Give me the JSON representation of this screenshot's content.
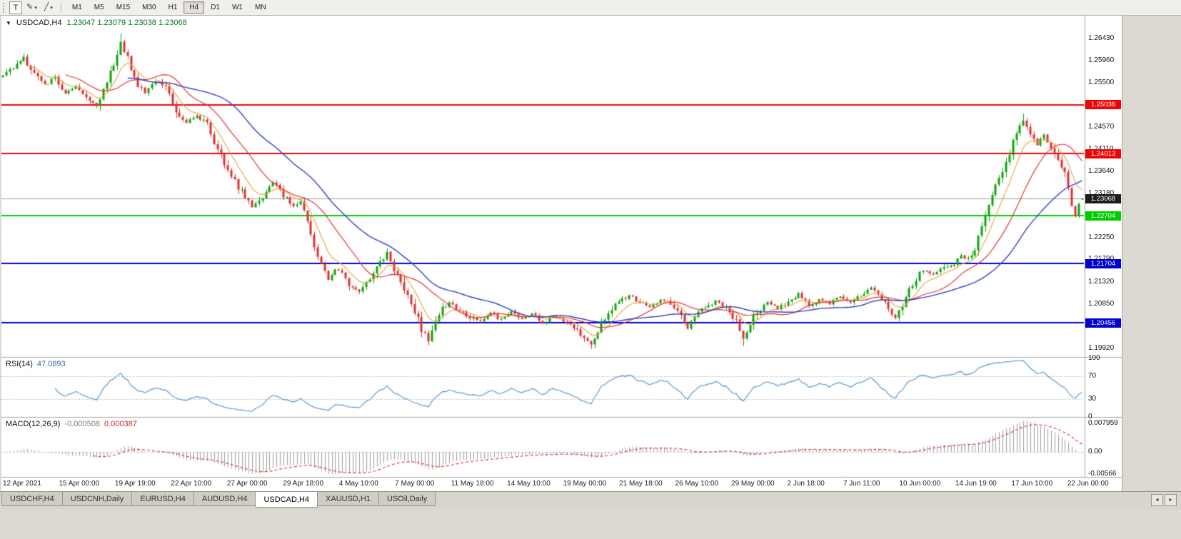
{
  "toolbar": {
    "t_button_label": "T",
    "dropdown_glyph": "▾",
    "tools": [
      {
        "name": "pencil-tool",
        "glyph": "✎"
      },
      {
        "name": "trendline-tool",
        "glyph": "╱"
      }
    ],
    "timeframes": [
      {
        "label": "M1",
        "active": false
      },
      {
        "label": "M5",
        "active": false
      },
      {
        "label": "M15",
        "active": false
      },
      {
        "label": "M30",
        "active": false
      },
      {
        "label": "H1",
        "active": false
      },
      {
        "label": "H4",
        "active": true
      },
      {
        "label": "D1",
        "active": false
      },
      {
        "label": "W1",
        "active": false
      },
      {
        "label": "MN",
        "active": false
      }
    ]
  },
  "chart": {
    "header": {
      "collapse_glyph": "▼",
      "title": "USDCAD,H4",
      "values": "1.23047 1.23079 1.23038 1.23068"
    }
  },
  "chart_data": {
    "type": "candlestick",
    "symbol": "USDCAD",
    "timeframe": "H4",
    "candle_count": 313,
    "ohlc": {
      "open": 1.23047,
      "high": 1.23079,
      "low": 1.23038,
      "close": 1.23068
    },
    "colors": {
      "bull": "#0ba50b",
      "bear": "#e03030"
    },
    "price_axis": {
      "max": 1.2691,
      "min": 1.19741,
      "ticks": [
        "1.26430",
        "1.25960",
        "1.25500",
        "1.25030",
        "1.24570",
        "1.24110",
        "1.23640",
        "1.23180",
        "1.22710",
        "1.22250",
        "1.21790",
        "1.21320",
        "1.20850",
        "1.20390",
        "1.19920"
      ]
    },
    "hlines": [
      {
        "price": 1.25036,
        "label": "1.25036",
        "color": "#f00505"
      },
      {
        "price": 1.24013,
        "label": "1.24013",
        "color": "#f00505"
      },
      {
        "price": 1.22704,
        "label": "1.22704",
        "color": "#00cc00"
      },
      {
        "price": 1.21704,
        "label": "1.21704",
        "color": "#0000cc"
      },
      {
        "price": 1.20456,
        "label": "1.20456",
        "color": "#0000cc"
      }
    ],
    "current_price": {
      "value": 1.23068,
      "label": "1.23068",
      "line_color": "#9a9a9a",
      "tag_color": "#1c1c1c"
    },
    "moving_averages": [
      {
        "type": "ema",
        "period": 8,
        "color": "#e8a33d",
        "width": 1.1
      },
      {
        "type": "sma",
        "period": 18,
        "color": "#e53434",
        "width": 1.2
      },
      {
        "type": "sma",
        "period": 36,
        "color": "#3342c8",
        "width": 1.4
      }
    ],
    "price_path": [
      [
        0,
        1.2562
      ],
      [
        3,
        1.2585
      ],
      [
        6,
        1.2602
      ],
      [
        9,
        1.257
      ],
      [
        12,
        1.2545
      ],
      [
        15,
        1.2562
      ],
      [
        18,
        1.2528
      ],
      [
        21,
        1.2545
      ],
      [
        24,
        1.252
      ],
      [
        27,
        1.25
      ],
      [
        30,
        1.2548
      ],
      [
        32,
        1.2592
      ],
      [
        34,
        1.2638
      ],
      [
        36,
        1.26
      ],
      [
        38,
        1.2558
      ],
      [
        41,
        1.2528
      ],
      [
        44,
        1.2556
      ],
      [
        47,
        1.2544
      ],
      [
        50,
        1.2492
      ],
      [
        53,
        1.2468
      ],
      [
        56,
        1.248
      ],
      [
        59,
        1.2462
      ],
      [
        61,
        1.2428
      ],
      [
        63,
        1.2398
      ],
      [
        65,
        1.2368
      ],
      [
        67,
        1.2342
      ],
      [
        69,
        1.232
      ],
      [
        72,
        1.2288
      ],
      [
        75,
        1.2308
      ],
      [
        78,
        1.2342
      ],
      [
        81,
        1.2312
      ],
      [
        84,
        1.229
      ],
      [
        86,
        1.2304
      ],
      [
        88,
        1.2262
      ],
      [
        90,
        1.2205
      ],
      [
        92,
        1.2165
      ],
      [
        94,
        1.2136
      ],
      [
        96,
        1.2158
      ],
      [
        98,
        1.215
      ],
      [
        100,
        1.2128
      ],
      [
        103,
        1.2114
      ],
      [
        106,
        1.214
      ],
      [
        108,
        1.2162
      ],
      [
        110,
        1.218
      ],
      [
        111,
        1.2194
      ],
      [
        113,
        1.216
      ],
      [
        115,
        1.2132
      ],
      [
        117,
        1.2102
      ],
      [
        119,
        1.2072
      ],
      [
        121,
        1.2032
      ],
      [
        123,
        1.201
      ],
      [
        125,
        1.2048
      ],
      [
        127,
        1.2076
      ],
      [
        129,
        1.209
      ],
      [
        132,
        1.207
      ],
      [
        135,
        1.2058
      ],
      [
        138,
        1.2048
      ],
      [
        141,
        1.2066
      ],
      [
        144,
        1.2052
      ],
      [
        147,
        1.207
      ],
      [
        150,
        1.2052
      ],
      [
        153,
        1.2063
      ],
      [
        156,
        1.2045
      ],
      [
        159,
        1.206
      ],
      [
        162,
        1.2048
      ],
      [
        165,
        1.2035
      ],
      [
        168,
        1.2016
      ],
      [
        170,
        1.2
      ],
      [
        172,
        1.2032
      ],
      [
        175,
        1.2068
      ],
      [
        178,
        1.2088
      ],
      [
        181,
        1.2105
      ],
      [
        184,
        1.209
      ],
      [
        187,
        1.2078
      ],
      [
        190,
        1.2096
      ],
      [
        193,
        1.2085
      ],
      [
        196,
        1.2056
      ],
      [
        198,
        1.2036
      ],
      [
        200,
        1.206
      ],
      [
        203,
        1.2078
      ],
      [
        206,
        1.2091
      ],
      [
        209,
        1.208
      ],
      [
        212,
        1.2052
      ],
      [
        214,
        1.2012
      ],
      [
        216,
        1.2046
      ],
      [
        218,
        1.207
      ],
      [
        221,
        1.2088
      ],
      [
        224,
        1.2076
      ],
      [
        227,
        1.209
      ],
      [
        230,
        1.2106
      ],
      [
        233,
        1.2082
      ],
      [
        236,
        1.2096
      ],
      [
        239,
        1.2086
      ],
      [
        242,
        1.2101
      ],
      [
        245,
        1.2089
      ],
      [
        248,
        1.2106
      ],
      [
        251,
        1.212
      ],
      [
        254,
        1.2096
      ],
      [
        256,
        1.2072
      ],
      [
        258,
        1.2056
      ],
      [
        260,
        1.2082
      ],
      [
        262,
        1.2112
      ],
      [
        264,
        1.2141
      ],
      [
        266,
        1.2156
      ],
      [
        269,
        1.2148
      ],
      [
        272,
        1.2163
      ],
      [
        275,
        1.2171
      ],
      [
        277,
        1.2186
      ],
      [
        279,
        1.2179
      ],
      [
        281,
        1.2202
      ],
      [
        283,
        1.2248
      ],
      [
        285,
        1.23
      ],
      [
        287,
        1.233
      ],
      [
        289,
        1.2362
      ],
      [
        291,
        1.2402
      ],
      [
        293,
        1.2444
      ],
      [
        295,
        1.2468
      ],
      [
        297,
        1.2441
      ],
      [
        299,
        1.2421
      ],
      [
        301,
        1.244
      ],
      [
        303,
        1.2416
      ],
      [
        305,
        1.2392
      ],
      [
        307,
        1.2362
      ],
      [
        309,
        1.2292
      ],
      [
        310,
        1.2274
      ],
      [
        311,
        1.2296
      ],
      [
        312,
        1.23068
      ]
    ],
    "spikes": {
      "6": {
        "h": 1.2612
      },
      "34": {
        "h": 1.2654
      },
      "111": {
        "h": 1.2202
      },
      "123": {
        "l": 1.1999
      },
      "170": {
        "l": 1.1991
      },
      "214": {
        "l": 1.1997
      },
      "295": {
        "h": 1.2485
      },
      "310": {
        "l": 1.2268
      }
    },
    "date_labels": [
      "12 Apr 2021",
      "15 Apr 00:00",
      "19 Apr 19:00",
      "22 Apr 10:00",
      "27 Apr 00:00",
      "29 Apr 18:00",
      "4 May 10:00",
      "7 May 00:00",
      "11 May 18:00",
      "14 May 10:00",
      "19 May 00:00",
      "21 May 18:00",
      "26 May 10:00",
      "29 May 00:00",
      "2 Jun 18:00",
      "7 Jun 11:00",
      "10 Jun 00:00",
      "14 Jun 19:00",
      "17 Jun 10:00",
      "22 Jun 00:00"
    ],
    "indicators": {
      "rsi": {
        "label": "RSI(14)",
        "value": "47.0893",
        "period": 14,
        "color": "#4a90d2",
        "levels": [
          70,
          30
        ],
        "ticks": [
          "100",
          "70",
          "30",
          "0"
        ]
      },
      "macd": {
        "label": "MACD(12,26,9)",
        "macd_value": "-0.000508",
        "signal_value": "0.000387",
        "fast": 12,
        "slow": 26,
        "signal": 9,
        "histogram_color": "#9e9e9e",
        "signal_color": "#e03030",
        "ticks": [
          "0.007959",
          "0.00",
          "-0.00566"
        ]
      }
    }
  },
  "tabs": {
    "scroll_left_glyph": "◄",
    "scroll_right_glyph": "►",
    "items": [
      {
        "label": "USDCHF,H4",
        "active": false
      },
      {
        "label": "USDCNH,Daily",
        "active": false
      },
      {
        "label": "EURUSD,H4",
        "active": false
      },
      {
        "label": "AUDUSD,H4",
        "active": false
      },
      {
        "label": "USDCAD,H4",
        "active": true
      },
      {
        "label": "XAUUSD,H1",
        "active": false
      },
      {
        "label": "USOil,Daily",
        "active": false
      }
    ]
  }
}
